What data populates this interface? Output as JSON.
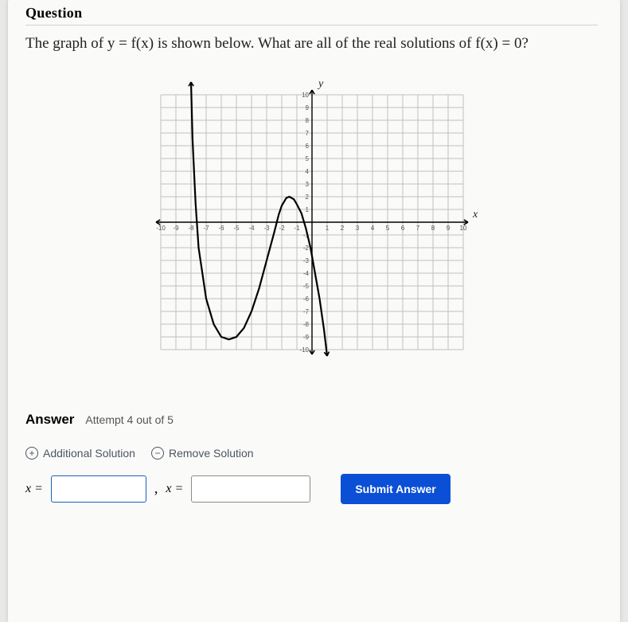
{
  "header": {
    "title": "Question"
  },
  "question": {
    "text": "The graph of y = f(x) is shown below. What are all of the real solutions of f(x) = 0?"
  },
  "chart": {
    "type": "line",
    "xlim": [
      -10,
      10
    ],
    "ylim": [
      -10,
      10
    ],
    "tick_step": 1,
    "x_axis_label": "x",
    "y_axis_label": "y",
    "x_ticks": [
      -10,
      -9,
      -8,
      -7,
      -6,
      -5,
      -4,
      -3,
      -2,
      -1,
      1,
      2,
      3,
      4,
      5,
      6,
      7,
      8,
      9,
      10
    ],
    "y_ticks": [
      -10,
      -9,
      -8,
      -7,
      -6,
      -5,
      -4,
      -3,
      -2,
      -1,
      1,
      2,
      3,
      4,
      5,
      6,
      7,
      8,
      9,
      10
    ],
    "grid_color": "#d8d8d8",
    "grid_major_color": "#c0c0c0",
    "axis_color": "#000000",
    "curve_color": "#000000",
    "background_color": "#fafaf8",
    "tick_fontsize": 8,
    "axis_label_fontsize": 14,
    "curve_points": [
      [
        -8.0,
        11.0
      ],
      [
        -7.9,
        6.5
      ],
      [
        -7.7,
        1.5
      ],
      [
        -7.5,
        -2.0
      ],
      [
        -7.0,
        -6.0
      ],
      [
        -6.5,
        -8.0
      ],
      [
        -6.0,
        -9.0
      ],
      [
        -5.5,
        -9.2
      ],
      [
        -5.0,
        -9.0
      ],
      [
        -4.5,
        -8.3
      ],
      [
        -4.0,
        -7.0
      ],
      [
        -3.5,
        -5.2
      ],
      [
        -3.0,
        -3.0
      ],
      [
        -2.5,
        -0.8
      ],
      [
        -2.2,
        0.6
      ],
      [
        -2.0,
        1.3
      ],
      [
        -1.7,
        1.9
      ],
      [
        -1.5,
        2.0
      ],
      [
        -1.2,
        1.8
      ],
      [
        -1.0,
        1.4
      ],
      [
        -0.7,
        0.7
      ],
      [
        -0.4,
        -0.5
      ],
      [
        -0.1,
        -2.0
      ],
      [
        0.2,
        -4.0
      ],
      [
        0.5,
        -6.0
      ],
      [
        0.8,
        -8.5
      ],
      [
        1.0,
        -10.5
      ]
    ],
    "left_arrow": true,
    "right_arrow": true,
    "curve_top_arrow": true,
    "curve_bottom_arrow": true
  },
  "answer": {
    "label": "Answer",
    "attempt": "Attempt 4 out of 5",
    "additional": "Additional Solution",
    "remove": "Remove Solution",
    "x_eq": "x =",
    "input1_value": "",
    "input2_value": "",
    "submit": "Submit Answer"
  }
}
